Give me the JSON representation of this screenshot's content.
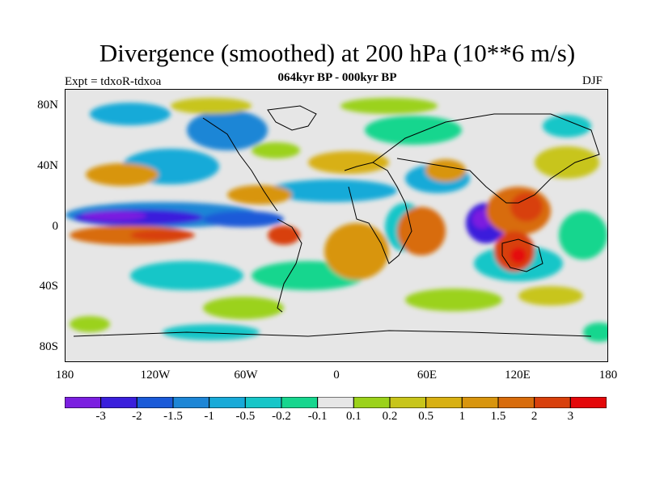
{
  "title": "Divergence (smoothed) at 200 hPa (10**6 m/s)",
  "experiment": "Expt = tdxoR-tdxoa",
  "subtitle": "064kyr BP - 000kyr BP",
  "season": "DJF",
  "lat_labels": [
    "80N",
    "40N",
    "0",
    "40S",
    "80S"
  ],
  "lon_labels": [
    "180",
    "120W",
    "60W",
    "0",
    "60E",
    "120E",
    "180"
  ],
  "colorbar": {
    "colors": [
      "#7b1fe0",
      "#3a1fdc",
      "#1a5ad8",
      "#1d86d6",
      "#18aad8",
      "#16c6c8",
      "#17d68e",
      "#e6e6e6",
      "#9bd21a",
      "#c8c51a",
      "#d8b012",
      "#d8950e",
      "#d86c0c",
      "#d8400c",
      "#e4080a"
    ],
    "labels": [
      "-3",
      "-2",
      "-1.5",
      "-1",
      "-0.5",
      "-0.2",
      "-0.1",
      "0.1",
      "0.2",
      "0.5",
      "1",
      "1.5",
      "2",
      "3"
    ]
  }
}
